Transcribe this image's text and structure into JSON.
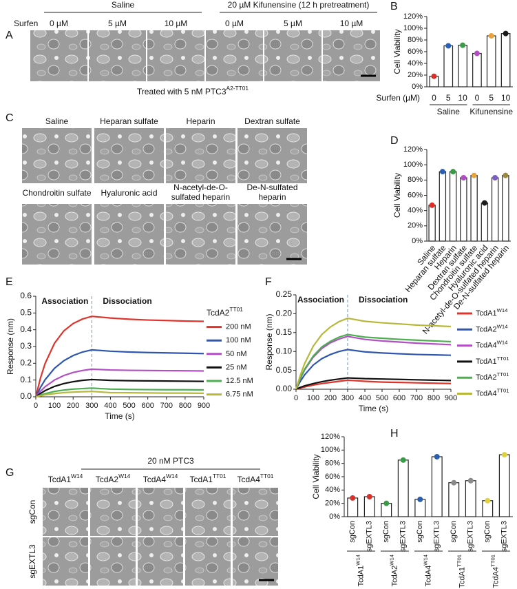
{
  "panel_labels": [
    "A",
    "B",
    "C",
    "D",
    "E",
    "F",
    "G",
    "H"
  ],
  "panel_a": {
    "groups": [
      "Saline",
      "20 µM Kifunensine (12 h pretreatment)"
    ],
    "row_label": "Surfen",
    "concentrations": [
      "0 µM",
      "5 µM",
      "10 µM",
      "0 µM",
      "5 µM",
      "10 µM"
    ],
    "caption": {
      "text": "Treated with 5 nM PTC3",
      "sup": "A2-TT01"
    }
  },
  "panel_c": {
    "labels": [
      "Saline",
      "Heparan sulfate",
      "Heparin",
      "Dextran sulfate",
      "Chondroitin sulfate",
      "Hyaluronic acid",
      [
        "N-acetyl-de-O-",
        "sulfated heparin"
      ],
      [
        "De-N-sulfated",
        "heparin"
      ]
    ]
  },
  "panel_g": {
    "title": "20 nM PTC3",
    "columns": [
      {
        "name": "TcdA1",
        "sup": "W14"
      },
      {
        "name": "TcdA2",
        "sup": "W14"
      },
      {
        "name": "TcdA4",
        "sup": "W14"
      },
      {
        "name": "TcdA1",
        "sup": "TT01"
      },
      {
        "name": "TcdA4",
        "sup": "TT01"
      }
    ],
    "rows": [
      "sgCon",
      "sgEXTL3"
    ]
  },
  "chart_data": [
    {
      "type": "bar",
      "ylabel": "Cell Viability",
      "xlabel": "Surfen (µM)",
      "categories": [
        "0",
        "5",
        "10",
        "0",
        "5",
        "10"
      ],
      "groups": [
        "Saline",
        "Kifunensine"
      ],
      "values": [
        18,
        70,
        71,
        57,
        87,
        91
      ],
      "point_colors": [
        "#d9302a",
        "#2b5fb4",
        "#3a9a48",
        "#b04fc2",
        "#e8a33a",
        "#1a1a1a"
      ],
      "ylim": [
        0,
        120
      ],
      "yticks": [
        {
          "value": 0,
          "label": "0%"
        },
        {
          "value": 20,
          "label": "20%"
        },
        {
          "value": 40,
          "label": "40%"
        },
        {
          "value": 60,
          "label": "60%"
        },
        {
          "value": 80,
          "label": "80%"
        },
        {
          "value": 100,
          "label": "100%"
        },
        {
          "value": 120,
          "label": "120%"
        }
      ]
    },
    {
      "type": "bar",
      "ylabel": "Cell Viability",
      "categories": [
        "Saline",
        "Heparan sulfate",
        "Heparin",
        "Dextran sulfate",
        "Chondroitin sulfate",
        "Hyaluronic acid",
        "N-acetyl-de-O-sulfated heparin",
        "De-N-sulfated heparin"
      ],
      "values": [
        47,
        91,
        91,
        83,
        86,
        50,
        83,
        86
      ],
      "point_colors": [
        "#d9302a",
        "#2b5fb4",
        "#3a9a48",
        "#b04fc2",
        "#e8a33a",
        "#1a1a1a",
        "#7b5fc0",
        "#9a8a3a"
      ],
      "ylim": [
        0,
        120
      ],
      "yticks": [
        {
          "value": 0,
          "label": "0%"
        },
        {
          "value": 20,
          "label": "20%"
        },
        {
          "value": 40,
          "label": "40%"
        },
        {
          "value": 60,
          "label": "60%"
        },
        {
          "value": 80,
          "label": "80%"
        },
        {
          "value": 100,
          "label": "100%"
        },
        {
          "value": 120,
          "label": "120%"
        }
      ]
    },
    {
      "type": "line",
      "xlabel": "Time (s)",
      "ylabel": "Response (nm)",
      "annotations": [
        "Association",
        "Dissociation"
      ],
      "divider_x": 300,
      "legend_title": {
        "name": "TcdA2",
        "sup": "TT01"
      },
      "x": [
        0,
        25,
        50,
        100,
        150,
        200,
        250,
        300,
        400,
        500,
        600,
        700,
        800,
        900
      ],
      "xlim": [
        0,
        900
      ],
      "xticks": [
        0,
        100,
        200,
        300,
        400,
        500,
        600,
        700,
        800,
        900
      ],
      "ylim": [
        0,
        0.6
      ],
      "yticks": [
        {
          "value": 0,
          "label": "0.0"
        },
        0.1,
        0.2,
        0.3,
        0.4,
        0.5,
        0.6
      ],
      "series": [
        {
          "name": "200 nM",
          "color": "#e0332b",
          "values": [
            0,
            0.112,
            0.199,
            0.319,
            0.393,
            0.437,
            0.464,
            0.48,
            0.47,
            0.463,
            0.458,
            0.455,
            0.452,
            0.45
          ]
        },
        {
          "name": "100 nM",
          "color": "#2e56b0",
          "values": [
            0,
            0.056,
            0.102,
            0.17,
            0.215,
            0.246,
            0.267,
            0.28,
            0.272,
            0.267,
            0.264,
            0.262,
            0.26,
            0.258
          ]
        },
        {
          "name": "50 nM",
          "color": "#b34fc4",
          "values": [
            0,
            0.033,
            0.06,
            0.1,
            0.127,
            0.145,
            0.157,
            0.165,
            0.16,
            0.158,
            0.157,
            0.156,
            0.155,
            0.154
          ]
        },
        {
          "name": "25 nM",
          "color": "#111111",
          "values": [
            0,
            0.02,
            0.037,
            0.062,
            0.079,
            0.09,
            0.098,
            0.103,
            0.098,
            0.096,
            0.095,
            0.094,
            0.093,
            0.092
          ]
        },
        {
          "name": "12.5 nM",
          "color": "#4caf50",
          "values": [
            0,
            0.01,
            0.019,
            0.032,
            0.04,
            0.046,
            0.049,
            0.052,
            0.046,
            0.044,
            0.043,
            0.042,
            0.042,
            0.041
          ]
        },
        {
          "name": "6.75 nM",
          "color": "#b7b83a",
          "values": [
            0,
            0.006,
            0.012,
            0.019,
            0.025,
            0.028,
            0.03,
            0.032,
            0.025,
            0.024,
            0.023,
            0.022,
            0.022,
            0.021
          ]
        }
      ]
    },
    {
      "type": "line",
      "xlabel": "Time (s)",
      "ylabel": "Response (nm)",
      "annotations": [
        "Association",
        "Dissociation"
      ],
      "divider_x": 300,
      "x": [
        0,
        25,
        50,
        100,
        150,
        200,
        250,
        300,
        400,
        500,
        600,
        700,
        800,
        900
      ],
      "xlim": [
        0,
        900
      ],
      "xticks": [
        0,
        100,
        200,
        300,
        400,
        500,
        600,
        700,
        800,
        900
      ],
      "ylim": [
        0,
        0.25
      ],
      "yticks": [
        {
          "value": 0,
          "label": "0.00"
        },
        0.05,
        {
          "value": 0.1,
          "label": "0.10"
        },
        0.15,
        {
          "value": 0.2,
          "label": "0.20"
        },
        0.25
      ],
      "series": [
        {
          "name": "TcdA1",
          "sup": "W14",
          "color": "#e0332b",
          "values": [
            0,
            0.003,
            0.006,
            0.011,
            0.015,
            0.018,
            0.021,
            0.024,
            0.021,
            0.019,
            0.018,
            0.017,
            0.016,
            0.015
          ]
        },
        {
          "name": "TcdA2",
          "sup": "W14",
          "color": "#2e56b0",
          "values": [
            0,
            0.021,
            0.038,
            0.064,
            0.081,
            0.092,
            0.1,
            0.105,
            0.099,
            0.096,
            0.094,
            0.092,
            0.091,
            0.09
          ]
        },
        {
          "name": "TcdA4",
          "sup": "W14",
          "color": "#b34fc4",
          "values": [
            0,
            0.028,
            0.051,
            0.085,
            0.108,
            0.123,
            0.133,
            0.14,
            0.132,
            0.128,
            0.125,
            0.122,
            0.12,
            0.118
          ]
        },
        {
          "name": "TcdA1",
          "sup": "TT01",
          "color": "#111111",
          "values": [
            0,
            0.005,
            0.009,
            0.015,
            0.02,
            0.024,
            0.027,
            0.03,
            0.028,
            0.027,
            0.026,
            0.025,
            0.024,
            0.023
          ]
        },
        {
          "name": "TcdA2",
          "sup": "TT01",
          "color": "#4caf50",
          "values": [
            0,
            0.029,
            0.053,
            0.088,
            0.112,
            0.127,
            0.138,
            0.145,
            0.138,
            0.135,
            0.132,
            0.13,
            0.128,
            0.126
          ]
        },
        {
          "name": "TcdA4",
          "sup": "TT01",
          "color": "#b7b83a",
          "values": [
            0,
            0.037,
            0.068,
            0.114,
            0.145,
            0.165,
            0.179,
            0.188,
            0.18,
            0.176,
            0.173,
            0.17,
            0.168,
            0.166
          ]
        }
      ]
    },
    {
      "type": "bar",
      "ylabel": "Cell Viability",
      "categories": [
        "sgCon",
        "sgEXTL3",
        "sgCon",
        "sgEXTL3",
        "sgCon",
        "sgEXTL3",
        "sgCon",
        "sgEXTL3",
        "sgCon",
        "sgEXTL3"
      ],
      "groups": [
        {
          "name": "TcdA1",
          "sup": "W14"
        },
        {
          "name": "TcdA2",
          "sup": "W14"
        },
        {
          "name": "TcdA4",
          "sup": "W14"
        },
        {
          "name": "TcdA1",
          "sup": "TT01"
        },
        {
          "name": "TcdA4",
          "sup": "TT01"
        }
      ],
      "values": [
        28,
        30,
        20,
        85,
        26,
        90,
        51,
        54,
        24,
        93
      ],
      "point_colors": [
        "#d9302a",
        "#d9302a",
        "#3a9a48",
        "#3a9a48",
        "#2b5fb4",
        "#2b5fb4",
        "#8a8a8a",
        "#8a8a8a",
        "#e0d23a",
        "#e0d23a"
      ],
      "ylim": [
        0,
        120
      ],
      "yticks": [
        {
          "value": 0,
          "label": "0%"
        },
        {
          "value": 20,
          "label": "20%"
        },
        {
          "value": 40,
          "label": "40%"
        },
        {
          "value": 60,
          "label": "60%"
        },
        {
          "value": 80,
          "label": "80%"
        },
        {
          "value": 100,
          "label": "100%"
        },
        {
          "value": 120,
          "label": "120%"
        }
      ]
    }
  ]
}
